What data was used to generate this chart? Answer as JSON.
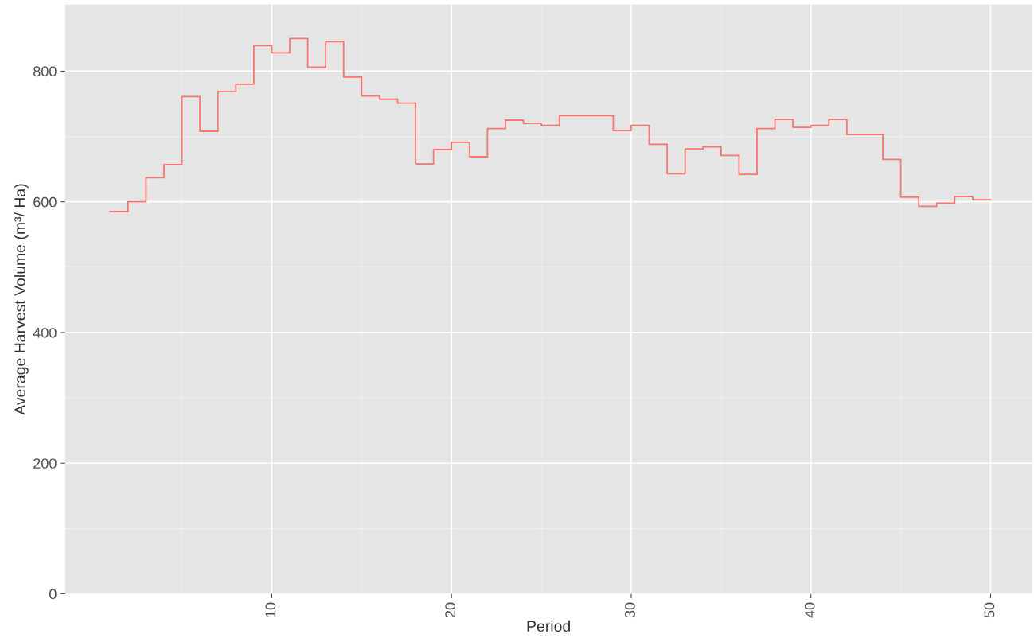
{
  "chart_data": {
    "type": "step",
    "xlabel": "Period",
    "ylabel": "Average Harvest Volume (m³/ Ha)",
    "x": [
      1,
      2,
      3,
      4,
      5,
      6,
      7,
      8,
      9,
      10,
      11,
      12,
      13,
      14,
      15,
      16,
      17,
      18,
      19,
      20,
      21,
      22,
      23,
      24,
      25,
      26,
      27,
      28,
      29,
      30,
      31,
      32,
      33,
      34,
      35,
      36,
      37,
      38,
      39,
      40,
      41,
      42,
      43,
      44,
      45,
      46,
      47,
      48,
      49,
      50
    ],
    "series": [
      {
        "color": "#f8766d",
        "values": [
          585,
          600,
          637,
          657,
          761,
          708,
          769,
          780,
          839,
          828,
          850,
          806,
          845,
          791,
          762,
          757,
          751,
          658,
          680,
          691,
          669,
          712,
          725,
          720,
          717,
          732,
          732,
          732,
          709,
          717,
          688,
          643,
          681,
          684,
          671,
          642,
          712,
          726,
          714,
          717,
          726,
          703,
          703,
          665,
          607,
          593,
          598,
          608,
          603,
          603
        ]
      }
    ],
    "xlim": [
      -1.5,
      52.3
    ],
    "xticks": [
      10,
      20,
      30,
      40,
      50
    ],
    "ylim": [
      0,
      902
    ],
    "yticks": [
      0,
      200,
      400,
      600,
      800
    ],
    "grid": true
  }
}
